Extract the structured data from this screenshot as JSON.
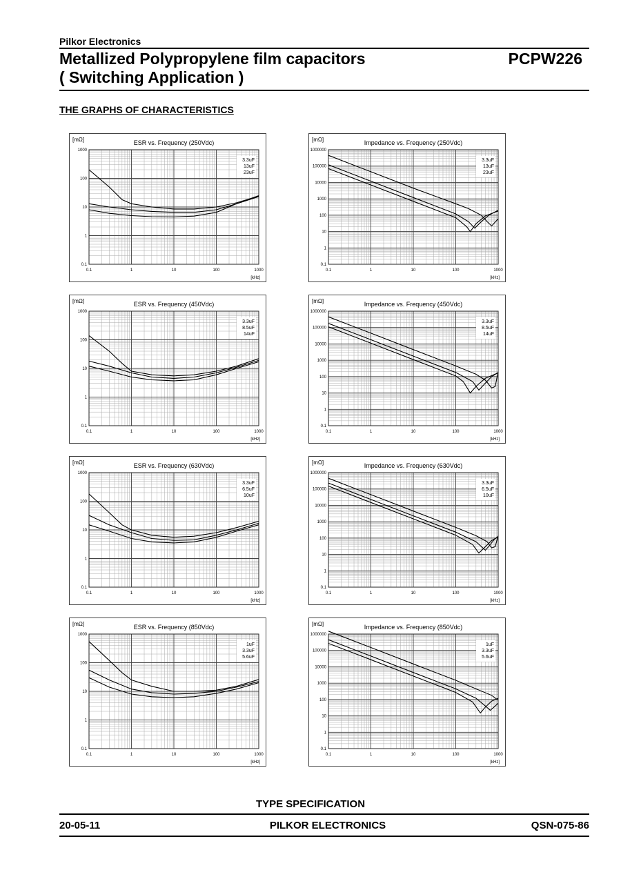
{
  "header": {
    "company": "Pilkor Electronics",
    "title_line1": "Metallized Polypropylene film capacitors",
    "title_line2": "( Switching Application )",
    "code": "PCPW226"
  },
  "section_title": "THE GRAPHS OF CHARACTERISTICS",
  "footer": {
    "type_spec": "TYPE SPECIFICATION",
    "date": "20-05-11",
    "company": "PILKOR ELECTRONICS",
    "doc_no": "QSN-075-86"
  },
  "chart_data": [
    {
      "type": "line",
      "title": "ESR vs. Frequency (250Vdc)",
      "ylabel": "[mΩ]",
      "xlabel": "[kHz]",
      "xscale": "log",
      "yscale": "log",
      "xlim": [
        0.1,
        1000
      ],
      "ylim": [
        0.1,
        1000
      ],
      "xticks": [
        "0.1",
        "1",
        "10",
        "100",
        "1000"
      ],
      "yticks": [
        "0.1",
        "1",
        "10",
        "100",
        "1000"
      ],
      "legend_position": "top-right",
      "grid": true,
      "series": [
        {
          "name": "3.3uF",
          "x": [
            0.1,
            0.3,
            0.6,
            1,
            3,
            10,
            30,
            100,
            300,
            1000
          ],
          "y": [
            200,
            50,
            18,
            13,
            10,
            8.5,
            8.5,
            10,
            14,
            24
          ]
        },
        {
          "name": "13uF",
          "x": [
            0.1,
            0.3,
            1,
            3,
            10,
            30,
            100,
            300,
            1000
          ],
          "y": [
            13,
            10,
            8,
            7,
            6.5,
            6.5,
            8,
            13,
            23
          ]
        },
        {
          "name": "23uF",
          "x": [
            0.1,
            0.3,
            1,
            3,
            10,
            30,
            100,
            300,
            1000
          ],
          "y": [
            8,
            6,
            5,
            4.6,
            4.5,
            4.8,
            6.5,
            13,
            25
          ]
        }
      ]
    },
    {
      "type": "line",
      "title": "Impedance vs. Frequency (250Vdc)",
      "ylabel": "[mΩ]",
      "xlabel": "[kHz]",
      "xscale": "log",
      "yscale": "log",
      "xlim": [
        0.1,
        1000
      ],
      "ylim": [
        0.1,
        1000000
      ],
      "xticks": [
        "0.1",
        "1",
        "10",
        "100",
        "1000"
      ],
      "yticks": [
        "0.1",
        "1",
        "10",
        "100",
        "1000",
        "10000",
        "100000",
        "1000000"
      ],
      "legend_position": "top-right",
      "grid": true,
      "series": [
        {
          "name": "3.3uF",
          "x": [
            0.1,
            1,
            10,
            100,
            200,
            400,
            550,
            700,
            1000
          ],
          "y": [
            450000,
            45000,
            4500,
            500,
            250,
            100,
            40,
            22,
            60
          ]
        },
        {
          "name": "13uF",
          "x": [
            0.1,
            1,
            10,
            100,
            200,
            280,
            400,
            600,
            1000
          ],
          "y": [
            120000,
            12000,
            1200,
            120,
            40,
            16,
            40,
            100,
            200
          ]
        },
        {
          "name": "23uF",
          "x": [
            0.1,
            1,
            10,
            100,
            180,
            220,
            300,
            500,
            1000
          ],
          "y": [
            70000,
            7000,
            700,
            70,
            20,
            10,
            30,
            90,
            180
          ]
        }
      ]
    },
    {
      "type": "line",
      "title": "ESR vs. Frequency (450Vdc)",
      "ylabel": "[mΩ]",
      "xlabel": "[kHz]",
      "xscale": "log",
      "yscale": "log",
      "xlim": [
        0.1,
        1000
      ],
      "ylim": [
        0.1,
        1000
      ],
      "xticks": [
        "0.1",
        "1",
        "10",
        "100",
        "1000"
      ],
      "yticks": [
        "0.1",
        "1",
        "10",
        "100",
        "1000"
      ],
      "legend_position": "top-right",
      "grid": true,
      "series": [
        {
          "name": "3.3uF",
          "x": [
            0.1,
            0.3,
            0.6,
            1,
            3,
            10,
            30,
            100,
            300,
            1000
          ],
          "y": [
            140,
            40,
            15,
            8,
            6,
            5.5,
            6,
            8,
            12,
            22
          ]
        },
        {
          "name": "8.5uF",
          "x": [
            0.1,
            0.3,
            1,
            3,
            10,
            30,
            100,
            300,
            1000
          ],
          "y": [
            18,
            12,
            7,
            5,
            4.5,
            5,
            7,
            11,
            19
          ]
        },
        {
          "name": "14uF",
          "x": [
            0.1,
            0.3,
            1,
            3,
            10,
            30,
            100,
            300,
            1000
          ],
          "y": [
            12,
            8,
            5,
            4,
            3.7,
            4,
            6,
            10,
            17
          ]
        }
      ]
    },
    {
      "type": "line",
      "title": "Impedance vs. Frequency (450Vdc)",
      "ylabel": "[mΩ]",
      "xlabel": "[kHz]",
      "xscale": "log",
      "yscale": "log",
      "xlim": [
        0.1,
        1000
      ],
      "ylim": [
        0.1,
        1000000
      ],
      "xticks": [
        "0.1",
        "1",
        "10",
        "100",
        "1000"
      ],
      "yticks": [
        "0.1",
        "1",
        "10",
        "100",
        "1000",
        "10000",
        "100000",
        "1000000"
      ],
      "legend_position": "top-right",
      "grid": true,
      "series": [
        {
          "name": "3.3uF",
          "x": [
            0.1,
            1,
            10,
            100,
            300,
            500,
            700,
            850,
            1000
          ],
          "y": [
            450000,
            45000,
            4500,
            450,
            140,
            60,
            20,
            25,
            200
          ]
        },
        {
          "name": "8.5uF",
          "x": [
            0.1,
            1,
            10,
            100,
            250,
            350,
            500,
            700,
            1000
          ],
          "y": [
            180000,
            18000,
            1800,
            180,
            50,
            15,
            40,
            100,
            180
          ]
        },
        {
          "name": "14uF",
          "x": [
            0.1,
            1,
            10,
            100,
            150,
            220,
            300,
            500,
            1000
          ],
          "y": [
            110000,
            11000,
            1100,
            110,
            50,
            10,
            25,
            80,
            170
          ]
        }
      ]
    },
    {
      "type": "line",
      "title": "ESR vs. Frequency (630Vdc)",
      "ylabel": "[mΩ]",
      "xlabel": "[kHz]",
      "xscale": "log",
      "yscale": "log",
      "xlim": [
        0.1,
        1000
      ],
      "ylim": [
        0.1,
        1000
      ],
      "xticks": [
        "0.1",
        "1",
        "10",
        "100",
        "1000"
      ],
      "yticks": [
        "0.1",
        "1",
        "10",
        "100",
        "1000"
      ],
      "legend_position": "top-right",
      "grid": true,
      "series": [
        {
          "name": "3.3uF",
          "x": [
            0.1,
            0.3,
            0.6,
            1,
            3,
            10,
            30,
            100,
            300,
            1000
          ],
          "y": [
            180,
            40,
            15,
            10,
            6.5,
            5.5,
            6,
            8,
            12,
            20
          ]
        },
        {
          "name": "6.5uF",
          "x": [
            0.1,
            0.3,
            1,
            3,
            10,
            30,
            100,
            300,
            1000
          ],
          "y": [
            32,
            15,
            8,
            5,
            4.3,
            4.5,
            6.5,
            10,
            17
          ]
        },
        {
          "name": "10uF",
          "x": [
            0.1,
            0.3,
            1,
            3,
            10,
            30,
            100,
            300,
            1000
          ],
          "y": [
            15,
            9,
            5,
            3.8,
            3.5,
            3.8,
            5.5,
            9,
            15
          ]
        }
      ]
    },
    {
      "type": "line",
      "title": "Impedance vs. Frequency (630Vdc)",
      "ylabel": "[mΩ]",
      "xlabel": "[kHz]",
      "xscale": "log",
      "yscale": "log",
      "xlim": [
        0.1,
        1000
      ],
      "ylim": [
        0.1,
        1000000
      ],
      "xticks": [
        "0.1",
        "1",
        "10",
        "100",
        "1000"
      ],
      "yticks": [
        "0.1",
        "1",
        "10",
        "100",
        "1000",
        "10000",
        "100000",
        "1000000"
      ],
      "legend_position": "top-right",
      "grid": true,
      "series": [
        {
          "name": "3.3uF",
          "x": [
            0.1,
            1,
            10,
            100,
            300,
            550,
            700,
            850,
            1000
          ],
          "y": [
            450000,
            45000,
            4500,
            450,
            140,
            60,
            25,
            30,
            140
          ]
        },
        {
          "name": "6.5uF",
          "x": [
            0.1,
            1,
            10,
            100,
            300,
            500,
            650,
            800,
            1000
          ],
          "y": [
            230000,
            23000,
            2300,
            230,
            60,
            18,
            40,
            80,
            130
          ]
        },
        {
          "name": "10uF",
          "x": [
            0.1,
            1,
            10,
            100,
            250,
            350,
            500,
            700,
            1000
          ],
          "y": [
            150000,
            15000,
            1500,
            150,
            40,
            12,
            30,
            70,
            120
          ]
        }
      ]
    },
    {
      "type": "line",
      "title": "ESR vs. Frequency (850Vdc)",
      "ylabel": "[mΩ]",
      "xlabel": "[kHz]",
      "xscale": "log",
      "yscale": "log",
      "xlim": [
        0.1,
        1000
      ],
      "ylim": [
        0.1,
        1000
      ],
      "xticks": [
        "0.1",
        "1",
        "10",
        "100",
        "1000"
      ],
      "yticks": [
        "0.1",
        "1",
        "10",
        "100",
        "1000"
      ],
      "legend_position": "top-right",
      "grid": true,
      "series": [
        {
          "name": "1uF",
          "x": [
            0.1,
            0.3,
            0.6,
            1,
            3,
            10,
            30,
            100,
            300,
            1000
          ],
          "y": [
            550,
            120,
            45,
            25,
            15,
            10,
            10,
            11,
            15,
            26
          ]
        },
        {
          "name": "3.3uF",
          "x": [
            0.1,
            0.3,
            1,
            3,
            10,
            30,
            100,
            300,
            1000
          ],
          "y": [
            55,
            25,
            12,
            9,
            8,
            8.5,
            10,
            14,
            22
          ]
        },
        {
          "name": "5.6uF",
          "x": [
            0.1,
            0.3,
            1,
            3,
            10,
            30,
            100,
            300,
            1000
          ],
          "y": [
            30,
            14,
            8,
            6.5,
            6,
            6.5,
            8.5,
            12,
            20
          ]
        }
      ]
    },
    {
      "type": "line",
      "title": "Impedance vs. Frequency (850Vdc)",
      "ylabel": "[mΩ]",
      "xlabel": "[kHz]",
      "xscale": "log",
      "yscale": "log",
      "xlim": [
        0.1,
        1000
      ],
      "ylim": [
        0.1,
        1000000
      ],
      "xticks": [
        "0.1",
        "1",
        "10",
        "100",
        "1000"
      ],
      "yticks": [
        "0.1",
        "1",
        "10",
        "100",
        "1000",
        "10000",
        "100000",
        "1000000"
      ],
      "legend_position": "top-right",
      "grid": true,
      "series": [
        {
          "name": "1uF",
          "x": [
            0.1,
            1,
            10,
            100,
            300,
            700,
            1000
          ],
          "y": [
            1500000,
            150000,
            15000,
            1500,
            450,
            180,
            90
          ]
        },
        {
          "name": "3.3uF",
          "x": [
            0.1,
            1,
            10,
            100,
            300,
            500,
            650,
            850,
            1000
          ],
          "y": [
            450000,
            45000,
            4500,
            450,
            120,
            40,
            22,
            40,
            60
          ]
        },
        {
          "name": "5.6uF",
          "x": [
            0.1,
            1,
            10,
            100,
            250,
            380,
            500,
            700,
            1000
          ],
          "y": [
            270000,
            27000,
            2700,
            270,
            70,
            15,
            35,
            80,
            120
          ]
        }
      ]
    }
  ]
}
